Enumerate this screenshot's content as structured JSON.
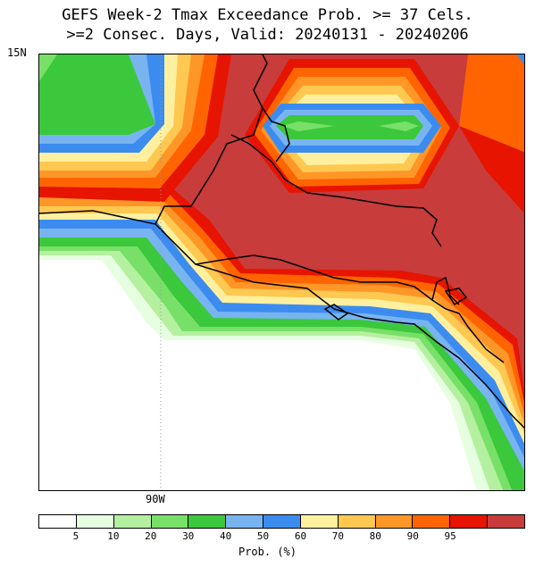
{
  "title_line1": "GEFS Week-2 Tmax Exceedance Prob. >= 37 Cels.",
  "title_line2": ">=2 Consec. Days, Valid: 20240131 - 20240206",
  "lat_label": "15N",
  "lon_label": "90W",
  "colorbar": {
    "label": "Prob. (%)",
    "ticks": [
      "5",
      "10",
      "20",
      "30",
      "40",
      "50",
      "60",
      "70",
      "80",
      "90",
      "95"
    ],
    "colors": [
      "#ffffff",
      "#e6ffe0",
      "#b4f0a0",
      "#78e068",
      "#3cc83c",
      "#78b4f0",
      "#3c8cf0",
      "#fff0a0",
      "#ffc850",
      "#ff9628",
      "#ff6400",
      "#e61400",
      "#c83c3c"
    ]
  },
  "map": {
    "band_colors": [
      "#e6ffe0",
      "#b4f0a0",
      "#78e068",
      "#3cc83c",
      "#78b4f0",
      "#3c8cf0",
      "#fff0a0",
      "#ffc850",
      "#ff9628",
      "#ff6400",
      "#e61400",
      "#c83c3c"
    ]
  }
}
